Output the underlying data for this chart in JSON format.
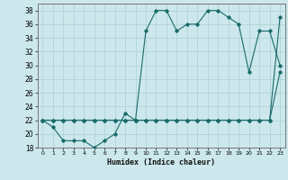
{
  "xlabel": "Humidex (Indice chaleur)",
  "bg_color": "#cce8ec",
  "grid_color": "#aacfd4",
  "line_color": "#1a6b6b",
  "xlim": [
    -0.5,
    23.5
  ],
  "ylim": [
    18,
    39
  ],
  "yticks": [
    18,
    20,
    22,
    24,
    26,
    28,
    30,
    32,
    34,
    36,
    38
  ],
  "xticks": [
    0,
    1,
    2,
    3,
    4,
    5,
    6,
    7,
    8,
    9,
    10,
    11,
    12,
    13,
    14,
    15,
    16,
    17,
    18,
    19,
    20,
    21,
    22,
    23
  ],
  "line1_y": [
    22,
    21,
    19,
    19,
    19,
    18,
    19,
    20,
    23,
    22,
    35,
    38,
    38,
    35,
    36,
    36,
    38,
    38,
    37,
    36,
    29,
    35,
    35,
    30
  ],
  "line2_y": [
    22,
    22,
    22,
    22,
    22,
    22,
    22,
    22,
    22,
    22,
    22,
    22,
    22,
    22,
    22,
    22,
    22,
    22,
    22,
    22,
    22,
    22,
    22,
    29
  ],
  "line3_y": [
    22,
    22,
    22,
    22,
    22,
    22,
    22,
    22,
    22,
    22,
    22,
    22,
    22,
    22,
    22,
    22,
    22,
    22,
    22,
    22,
    22,
    22,
    22,
    37
  ]
}
